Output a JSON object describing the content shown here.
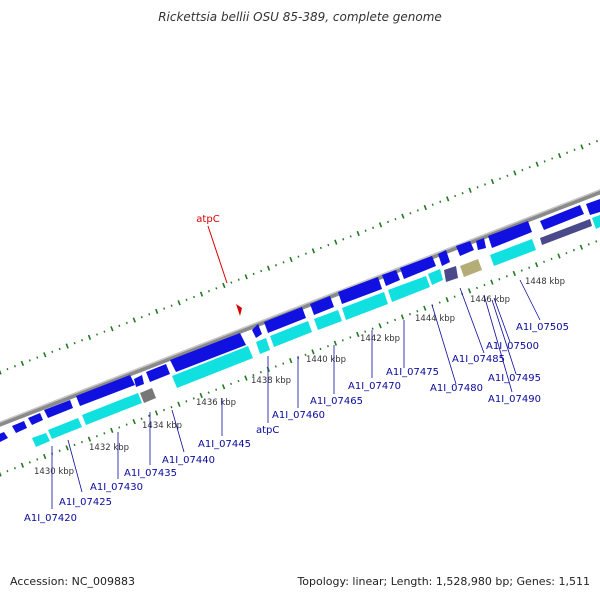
{
  "title": "Rickettsia bellii OSU 85-389, complete genome",
  "accession": "Accession: NC_009883",
  "summary": "Topology: linear; Length: 1,528,980 bp; Genes: 1,511",
  "colors": {
    "backbone": "#8a8a8a",
    "gene_forward": "#1010e0",
    "gene_reverse": "#10e0e0",
    "gene_gray": "#777777",
    "gene_olive": "#b5ad78",
    "gene_slate": "#4a4a8a",
    "tick": "#207a20",
    "label": "#0a0a9c",
    "highlight": "#d40000",
    "scale_text": "#333333"
  },
  "scale_labels": [
    "1430 kbp",
    "1432 kbp",
    "1434 kbp",
    "1436 kbp",
    "1438 kbp",
    "1440 kbp",
    "1442 kbp",
    "1444 kbp",
    "1446 kbp",
    "1448 kbp"
  ],
  "gene_labels": [
    "A1I_07420",
    "A1I_07425",
    "A1I_07430",
    "A1I_07435",
    "A1I_07440",
    "A1I_07445",
    "atpC",
    "A1I_07460",
    "A1I_07465",
    "A1I_07470",
    "A1I_07475",
    "A1I_07480",
    "A1I_07485",
    "A1I_07490",
    "A1I_07495",
    "A1I_07500",
    "A1I_07505"
  ],
  "highlight_label": "atpC"
}
